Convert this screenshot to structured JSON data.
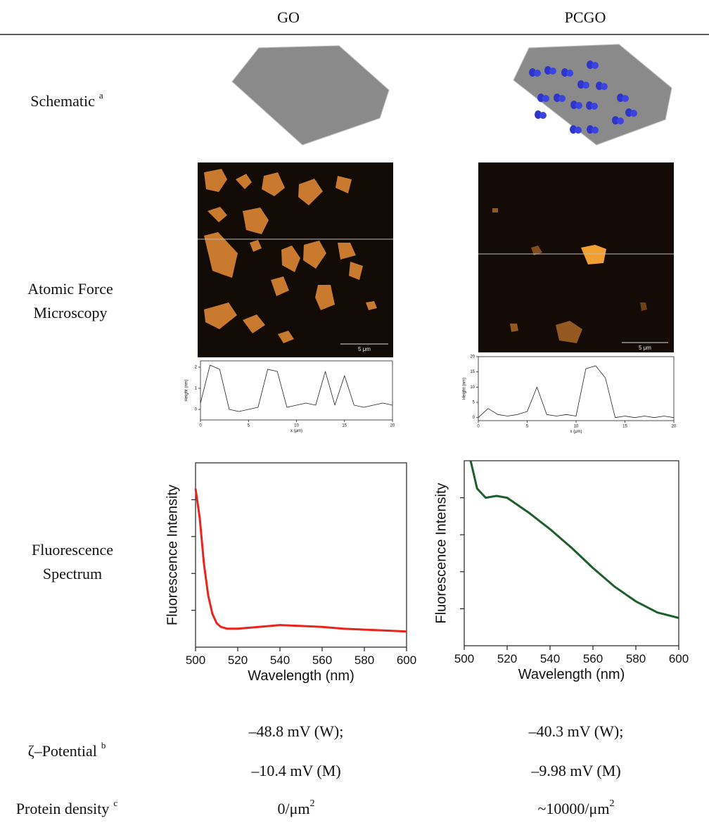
{
  "header": {
    "columns": [
      "GO",
      "PCGO"
    ]
  },
  "row_labels": [
    {
      "lines": [
        "Schematic"
      ],
      "sup": "a"
    },
    {
      "lines": [
        "Atomic Force",
        "Microscopy"
      ]
    },
    {
      "lines": [
        "Fluorescence",
        "Spectrum"
      ]
    },
    {
      "lines": [
        "ζ–Potential"
      ],
      "sup": "b"
    },
    {
      "lines": [
        "Protein density"
      ],
      "sup": "c"
    }
  ],
  "afm": [
    {
      "scale_bar": "5 μm"
    },
    {
      "scale_bar": "5 μm"
    }
  ],
  "profiles": [
    {
      "type": "line",
      "xlabel": "x (μm)",
      "ylabel": "Height (nm)",
      "color": "#222",
      "x": [
        0,
        1,
        2,
        3,
        4,
        5,
        6,
        7,
        8,
        9,
        10,
        11,
        12,
        13,
        14,
        15,
        16,
        17,
        18,
        19,
        20
      ],
      "values": [
        0.3,
        2.1,
        1.9,
        0,
        -0.1,
        0,
        0.1,
        1.9,
        1.8,
        0.1,
        0.2,
        0.3,
        0.2,
        1.8,
        0.2,
        1.6,
        0.2,
        0.1,
        0.2,
        0.3,
        0.2
      ],
      "xlim": [
        0,
        20
      ],
      "ylim": [
        -0.5,
        2.3
      ],
      "xticks": [
        0,
        5,
        10,
        15,
        20
      ],
      "yticks": [
        0,
        1,
        2
      ],
      "ytick_labels": true
    },
    {
      "type": "line",
      "xlabel": "x (μm)",
      "ylabel": "Height (nm)",
      "color": "#222",
      "x": [
        0,
        1,
        2,
        3,
        4,
        5,
        6,
        7,
        8,
        9,
        10,
        11,
        12,
        13,
        14,
        15,
        16,
        17,
        18,
        19,
        20
      ],
      "values": [
        0,
        3,
        1,
        0.5,
        1,
        2,
        10,
        1,
        0.5,
        1,
        0.5,
        16,
        17,
        13,
        0,
        0.5,
        0,
        0.5,
        0,
        0.5,
        0
      ],
      "xlim": [
        0,
        20
      ],
      "ylim": [
        -1,
        20
      ],
      "xticks": [
        0,
        5,
        10,
        15,
        20
      ],
      "yticks": [
        0,
        5,
        10,
        15,
        20
      ],
      "ytick_labels": true
    }
  ],
  "spectra": [
    {
      "type": "line",
      "xlabel": "Wavelength (nm)",
      "ylabel": "Fluorescence Intensity",
      "color": "#e8251c",
      "x": [
        500,
        502,
        504,
        506,
        508,
        510,
        512,
        515,
        520,
        530,
        540,
        550,
        560,
        570,
        580,
        590,
        600
      ],
      "values": [
        86,
        70,
        45,
        28,
        18,
        13,
        11,
        10,
        10,
        11,
        12,
        11.5,
        11,
        10,
        9.5,
        9,
        8.5
      ],
      "xlim": [
        500,
        600
      ],
      "ylim": [
        0,
        100
      ],
      "xticks": [
        500,
        520,
        540,
        560,
        580,
        600
      ],
      "yticks": [
        20,
        40,
        60,
        80
      ],
      "ytick_labels": false
    },
    {
      "type": "line",
      "xlabel": "Wavelength (nm)",
      "ylabel": "Fluorescence Intensity",
      "color": "#1e5e2c",
      "x": [
        503,
        506,
        510,
        515,
        520,
        530,
        540,
        550,
        560,
        570,
        580,
        590,
        600
      ],
      "values": [
        100,
        85,
        80,
        81,
        80,
        72,
        63,
        53,
        42,
        32,
        24,
        18,
        15
      ],
      "xlim": [
        500,
        600
      ],
      "ylim": [
        0,
        100
      ],
      "xticks": [
        500,
        520,
        540,
        560,
        580,
        600
      ],
      "yticks": [
        20,
        40,
        60,
        80
      ],
      "ytick_labels": false
    }
  ],
  "zeta": [
    [
      "–48.8 mV (W);",
      "–10.4 mV (M)"
    ],
    [
      "–40.3 mV (W);",
      "–9.98 mV (M)"
    ]
  ],
  "density": [
    {
      "text": "0/μm",
      "sup": "2"
    },
    {
      "text": "~10000/μm",
      "sup": "2"
    }
  ]
}
